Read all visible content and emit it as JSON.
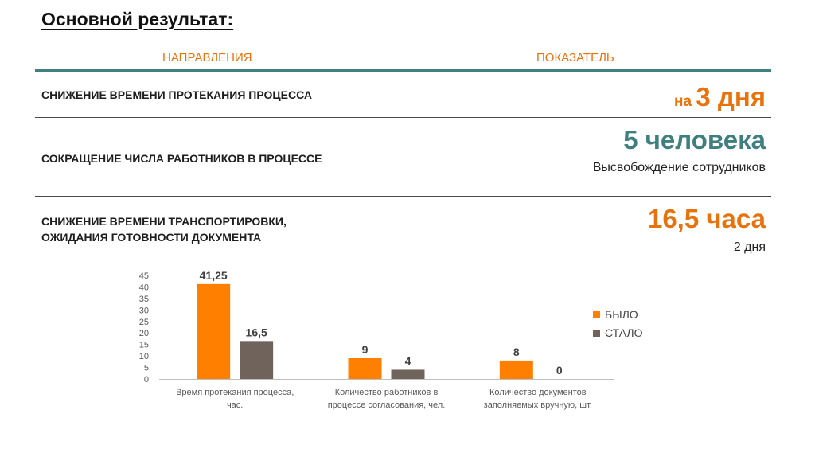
{
  "title": "Основной результат:",
  "header": {
    "left": "НАПРАВЛЕНИЯ",
    "right": "ПОКАЗАТЕЛЬ"
  },
  "rows": [
    {
      "label": "СНИЖЕНИЕ ВРЕМЕНИ ПРОТЕКАНИЯ ПРОЦЕССА",
      "metric_prefix": "на ",
      "metric": "3 дня",
      "sub": ""
    },
    {
      "label": "СОКРАЩЕНИЕ ЧИСЛА РАБОТНИКОВ В ПРОЦЕССЕ",
      "metric_prefix": "",
      "metric": "5 человека",
      "sub": "Высвобождение сотрудников"
    },
    {
      "label": "СНИЖЕНИЕ ВРЕМЕНИ ТРАНСПОРТИРОВКИ,\nОЖИДАНИЯ ГОТОВНОСТИ ДОКУМЕНТА",
      "metric_prefix": "",
      "metric": "16,5 часа",
      "sub": "2 дня"
    }
  ],
  "colors": {
    "accent": "#e8720c",
    "teal": "#3f7f80",
    "bylo": "#ff8000",
    "stalo": "#70635b"
  },
  "chart_data": {
    "type": "bar",
    "categories": [
      [
        "Время протекания процесса,",
        "час."
      ],
      [
        "Количество работников в",
        "процессе согласования, чел."
      ],
      [
        "Количество документов",
        "заполняемых вручную, шт."
      ]
    ],
    "series": [
      {
        "name": "БЫЛО",
        "values": [
          41.25,
          9,
          8
        ],
        "labels": [
          "41,25",
          "9",
          "8"
        ]
      },
      {
        "name": "СТАЛО",
        "values": [
          16.5,
          4,
          0
        ],
        "labels": [
          "16,5",
          "4",
          "0"
        ]
      }
    ],
    "yticks": [
      "0",
      "5",
      "10",
      "15",
      "20",
      "25",
      "30",
      "35",
      "40",
      "45"
    ],
    "ylim": [
      0,
      45
    ],
    "legend_position": "right"
  }
}
